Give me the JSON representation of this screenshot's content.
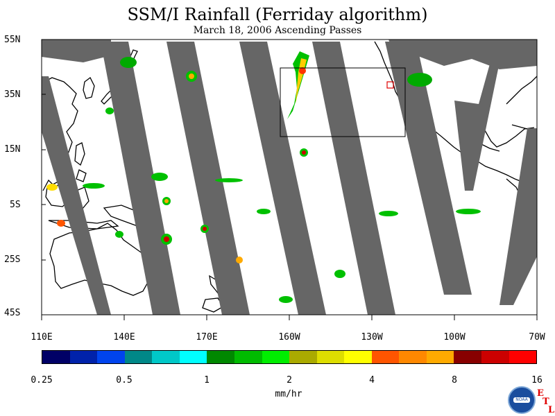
{
  "header": {
    "title": "SSM/I Rainfall (Ferriday algorithm)",
    "subtitle": "March 18, 2006  Ascending Passes"
  },
  "map": {
    "lat_labels": [
      "55N",
      "35N",
      "15N",
      "5S",
      "25S",
      "45S"
    ],
    "lon_labels": [
      "110E",
      "140E",
      "170E",
      "160W",
      "130W",
      "100W",
      "70W"
    ],
    "colors": {
      "no_data_swath_gap": "#666666",
      "coastline": "#000000",
      "background": "#ffffff"
    }
  },
  "colorbar": {
    "colors": [
      "#000066",
      "#0022aa",
      "#0044ee",
      "#008888",
      "#00c8c8",
      "#00ffff",
      "#008800",
      "#00bb00",
      "#00ee00",
      "#aaaa00",
      "#dddd00",
      "#ffff00",
      "#ff5500",
      "#ff8800",
      "#ffaa00",
      "#880000",
      "#cc0000",
      "#ff0000"
    ],
    "tick_labels": [
      "0.25",
      "0.5",
      "1",
      "2",
      "4",
      "8",
      "16"
    ],
    "units": "mm/hr"
  },
  "logo": {
    "name": "NOAA",
    "etl_letters": [
      "E",
      "T",
      "L"
    ]
  }
}
